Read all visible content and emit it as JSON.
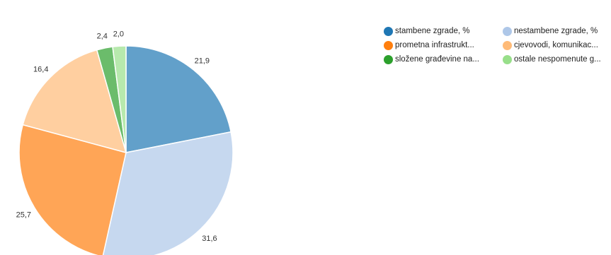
{
  "chart_data": {
    "type": "pie",
    "title": "",
    "series": [
      {
        "name": "stambene zgrade, %",
        "value": 21.9,
        "label": "21,9",
        "color": "#1f77b4"
      },
      {
        "name": "nestambene zgrade, %",
        "value": 31.6,
        "label": "31,6",
        "color": "#aec7e8"
      },
      {
        "name": "prometna infrastrukt...",
        "value": 25.7,
        "label": "25,7",
        "color": "#ff7f0e"
      },
      {
        "name": "cjevovodi, komunikac...",
        "value": 16.4,
        "label": "16,4",
        "color": "#ffbb78"
      },
      {
        "name": "složene građevine na...",
        "value": 2.4,
        "label": "2,4",
        "color": "#2ca02c"
      },
      {
        "name": "ostale nespomenute g...",
        "value": 2.0,
        "label": "2,0",
        "color": "#98df8a"
      }
    ],
    "legend_position": "top-right"
  }
}
